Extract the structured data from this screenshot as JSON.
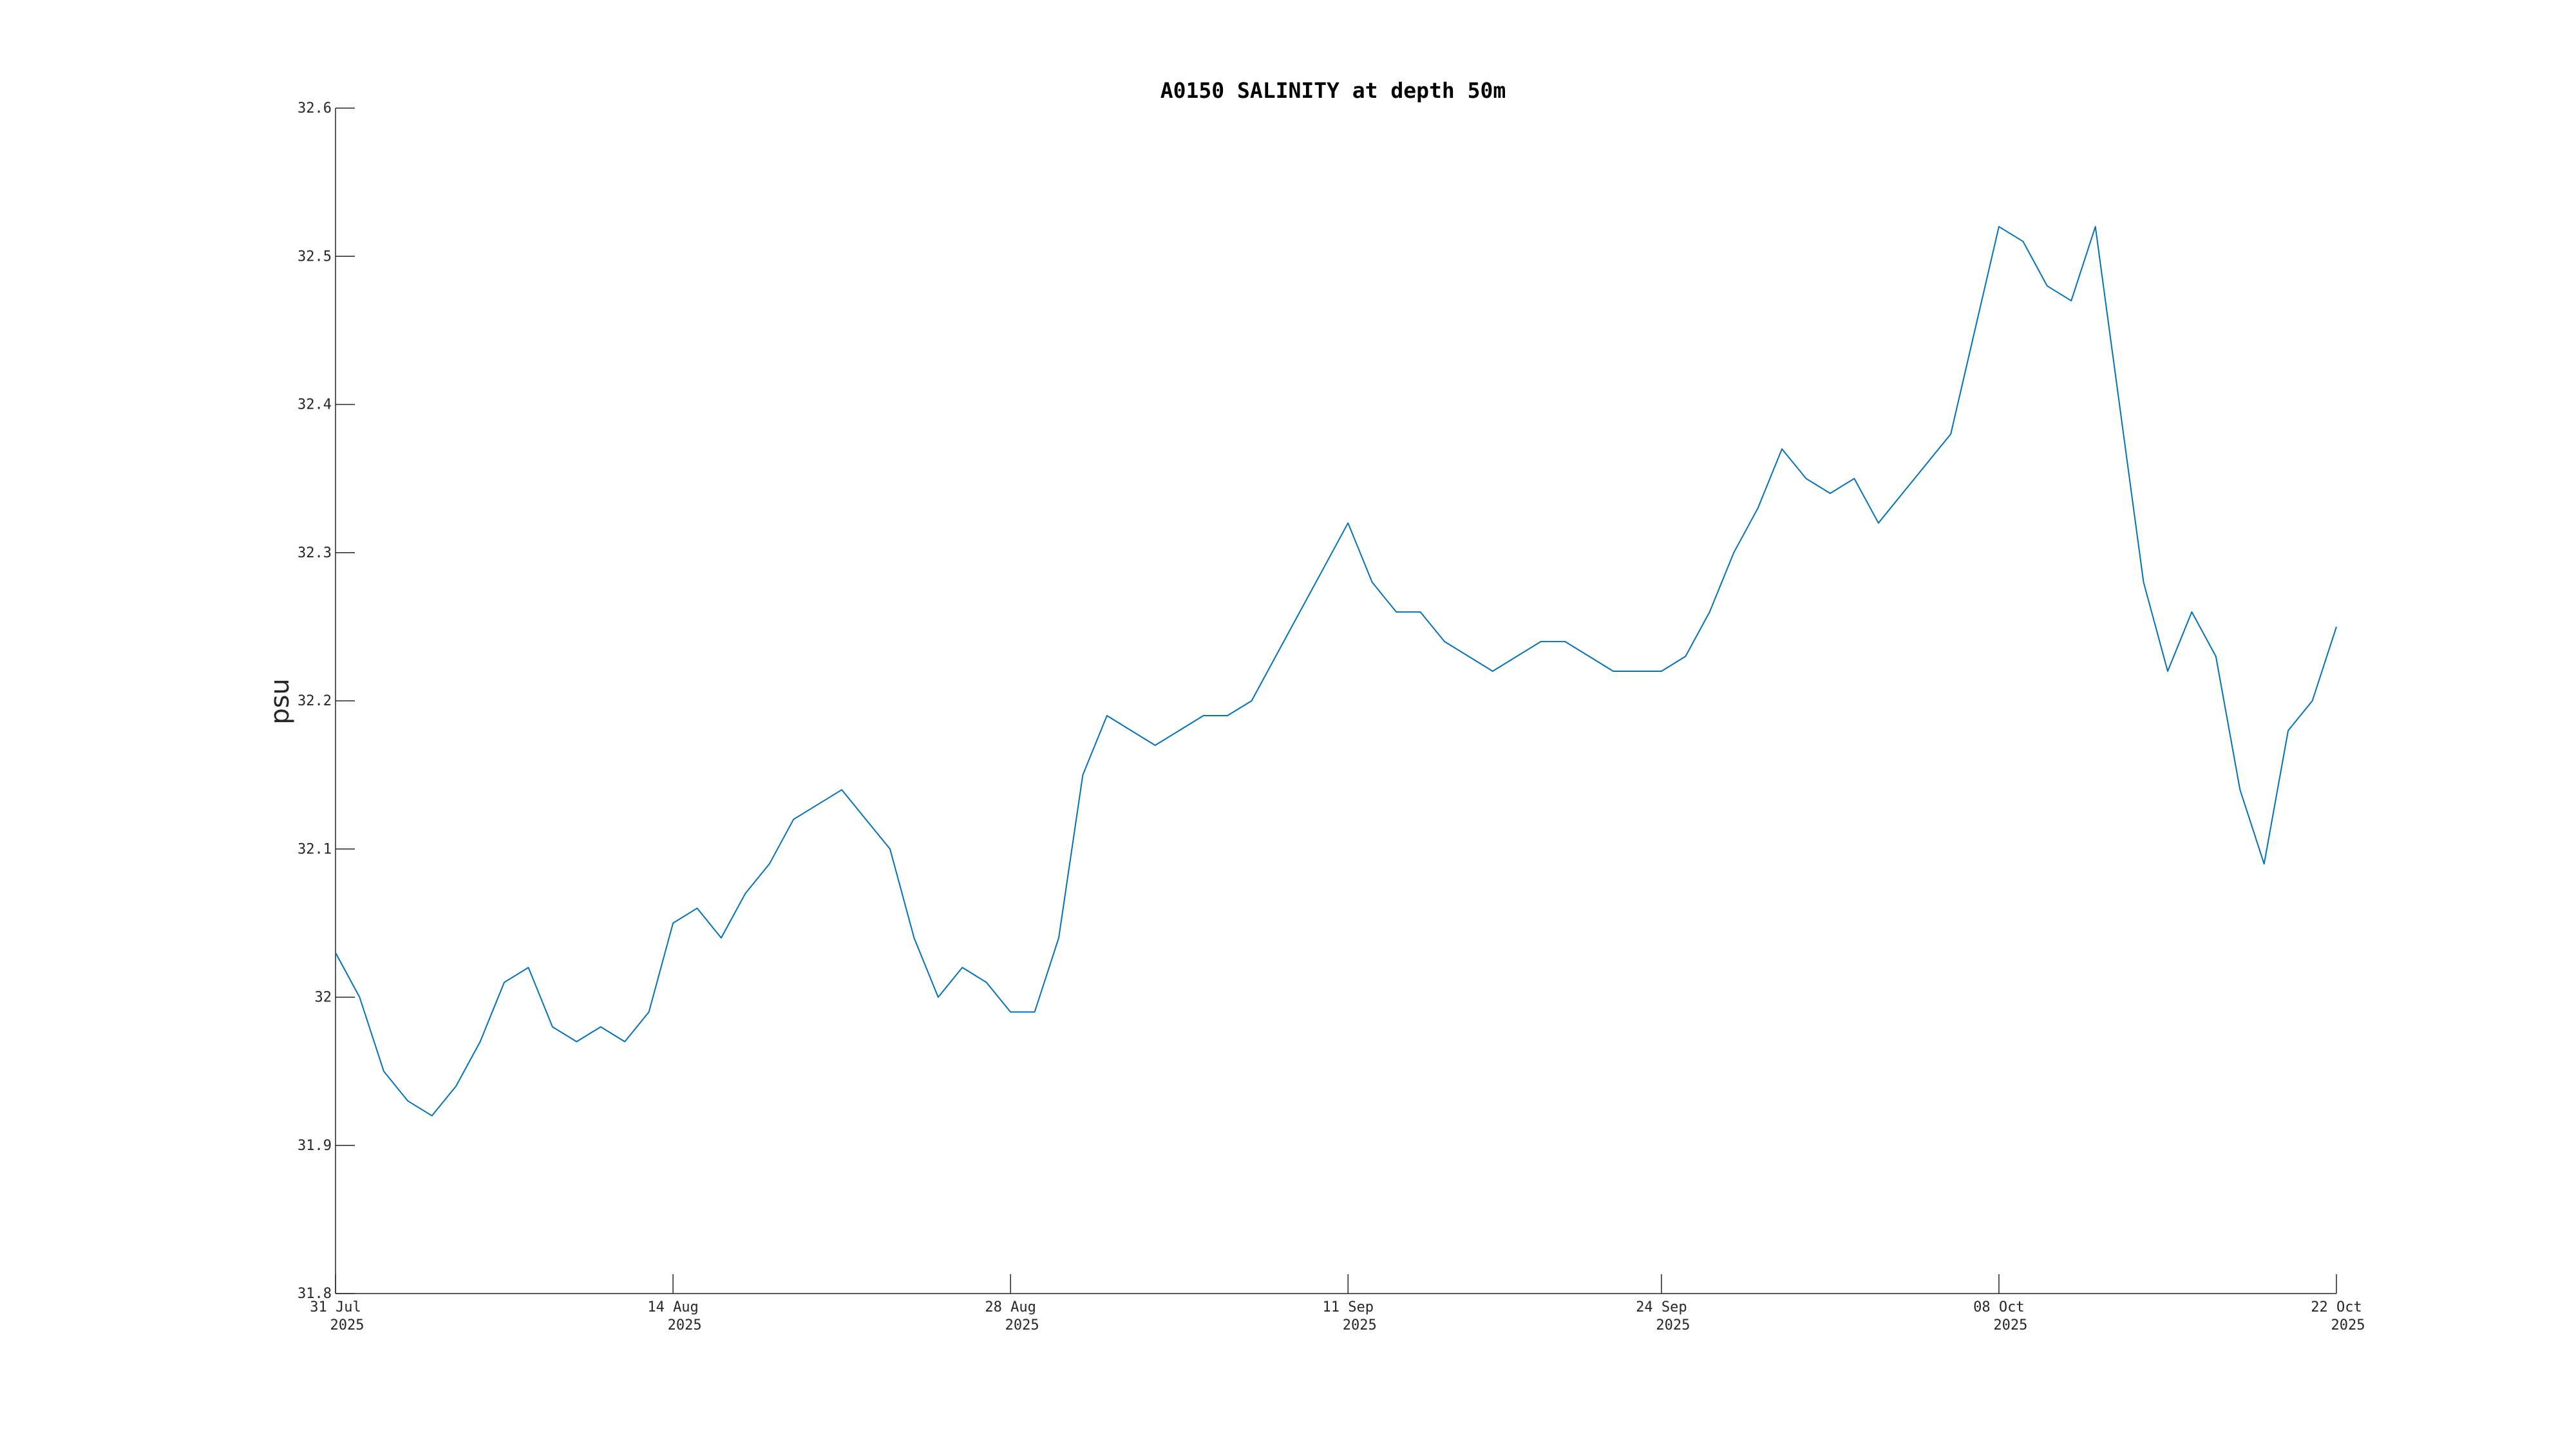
{
  "chart_data": {
    "type": "line",
    "title": "A0150 SALINITY at depth 50m",
    "xlabel": "",
    "ylabel": "psu",
    "xlim": [
      "2025-07-31",
      "2025-10-22"
    ],
    "ylim": [
      31.8,
      32.6
    ],
    "grid": false,
    "x_ticks": [
      {
        "date": "2025-07-31",
        "line1": "31 Jul",
        "line2": "2025"
      },
      {
        "date": "2025-08-14",
        "line1": "14 Aug",
        "line2": "2025"
      },
      {
        "date": "2025-08-28",
        "line1": "28 Aug",
        "line2": "2025"
      },
      {
        "date": "2025-09-11",
        "line1": "11 Sep",
        "line2": "2025"
      },
      {
        "date": "2025-09-24",
        "line1": "24 Sep",
        "line2": "2025"
      },
      {
        "date": "2025-10-08",
        "line1": "08 Oct",
        "line2": "2025"
      },
      {
        "date": "2025-10-22",
        "line1": "22 Oct",
        "line2": "2025"
      }
    ],
    "y_ticks": [
      "31.8",
      "31.9",
      "32",
      "32.1",
      "32.2",
      "32.3",
      "32.4",
      "32.5",
      "32.6"
    ],
    "series": [
      {
        "color": "#0072bd",
        "x": [
          "2025-07-31",
          "2025-08-01",
          "2025-08-02",
          "2025-08-03",
          "2025-08-04",
          "2025-08-05",
          "2025-08-06",
          "2025-08-07",
          "2025-08-08",
          "2025-08-09",
          "2025-08-10",
          "2025-08-11",
          "2025-08-12",
          "2025-08-13",
          "2025-08-14",
          "2025-08-15",
          "2025-08-16",
          "2025-08-17",
          "2025-08-18",
          "2025-08-19",
          "2025-08-20",
          "2025-08-21",
          "2025-08-22",
          "2025-08-23",
          "2025-08-24",
          "2025-08-25",
          "2025-08-26",
          "2025-08-27",
          "2025-08-28",
          "2025-08-29",
          "2025-08-30",
          "2025-08-31",
          "2025-09-01",
          "2025-09-02",
          "2025-09-03",
          "2025-09-04",
          "2025-09-05",
          "2025-09-06",
          "2025-09-07",
          "2025-09-08",
          "2025-09-09",
          "2025-09-10",
          "2025-09-11",
          "2025-09-12",
          "2025-09-13",
          "2025-09-14",
          "2025-09-15",
          "2025-09-16",
          "2025-09-17",
          "2025-09-18",
          "2025-09-19",
          "2025-09-20",
          "2025-09-21",
          "2025-09-22",
          "2025-09-23",
          "2025-09-24",
          "2025-09-25",
          "2025-09-26",
          "2025-09-27",
          "2025-09-28",
          "2025-09-29",
          "2025-09-30",
          "2025-10-01",
          "2025-10-02",
          "2025-10-03",
          "2025-10-04",
          "2025-10-05",
          "2025-10-06",
          "2025-10-07",
          "2025-10-08",
          "2025-10-09",
          "2025-10-10",
          "2025-10-11",
          "2025-10-12",
          "2025-10-13",
          "2025-10-14",
          "2025-10-15",
          "2025-10-16",
          "2025-10-17",
          "2025-10-18",
          "2025-10-19",
          "2025-10-20",
          "2025-10-21",
          "2025-10-22"
        ],
        "y": [
          32.03,
          32.0,
          31.95,
          31.93,
          31.92,
          31.94,
          31.97,
          32.01,
          32.02,
          31.98,
          31.97,
          31.98,
          31.97,
          31.99,
          32.05,
          32.06,
          32.04,
          32.07,
          32.09,
          32.12,
          32.13,
          32.14,
          32.12,
          32.1,
          32.04,
          32.0,
          32.02,
          32.01,
          31.99,
          31.99,
          32.04,
          32.15,
          32.19,
          32.18,
          32.17,
          32.18,
          32.19,
          32.19,
          32.2,
          32.23,
          32.26,
          32.29,
          32.32,
          32.28,
          32.26,
          32.26,
          32.24,
          32.23,
          32.22,
          32.23,
          32.24,
          32.24,
          32.23,
          32.22,
          32.22,
          32.22,
          32.23,
          32.26,
          32.3,
          32.33,
          32.37,
          32.35,
          32.34,
          32.35,
          32.32,
          32.34,
          32.36,
          32.38,
          32.45,
          32.52,
          32.51,
          32.48,
          32.47,
          32.52,
          32.4,
          32.28,
          32.22,
          32.26,
          32.23,
          32.14,
          32.09,
          32.18,
          32.2,
          32.25
        ]
      }
    ]
  }
}
